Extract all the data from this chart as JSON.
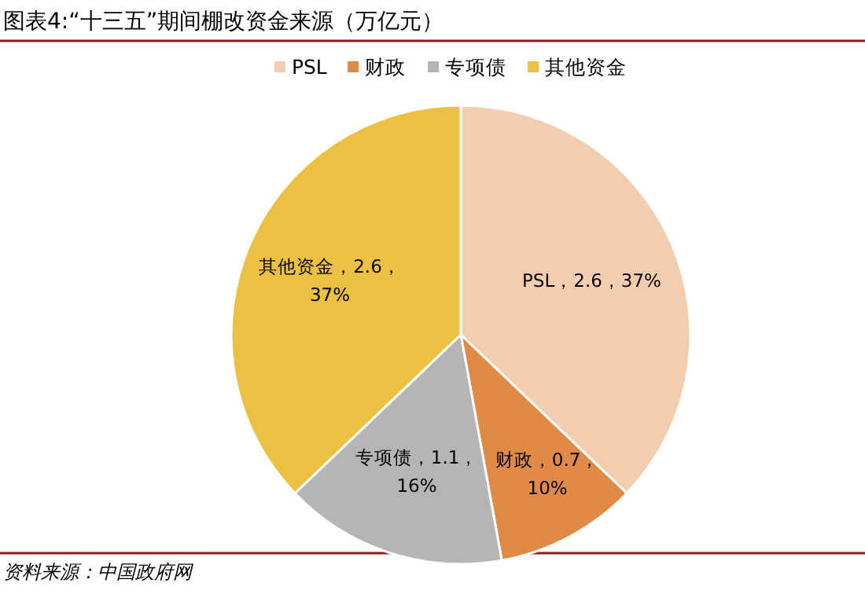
{
  "chart_data": {
    "type": "pie",
    "title": "图表4:“十三五”期间棚改资金来源（万亿元）",
    "categories": [
      "PSL",
      "财政",
      "专项债",
      "其他资金"
    ],
    "values": [
      2.6,
      0.7,
      1.1,
      2.6
    ],
    "colors": [
      "#f2cdb0",
      "#e08a45",
      "#b5b5b5",
      "#ecc040"
    ],
    "value_labels": [
      "PSL，2.6，37%",
      "财政，0.7，10%",
      "专项债，1.1，16%",
      "其他资金，2.6，37%"
    ],
    "legend": "top",
    "annotations": [
      "资料来源：中国政府网"
    ]
  }
}
